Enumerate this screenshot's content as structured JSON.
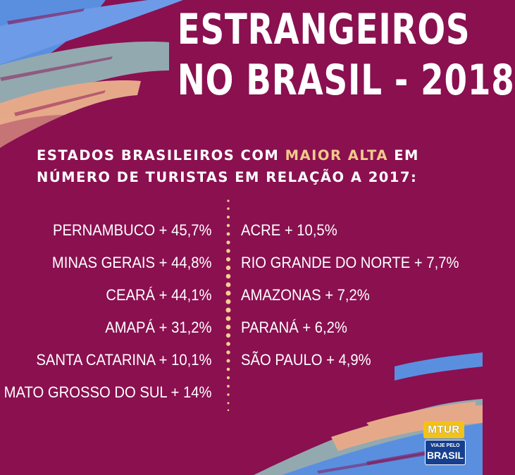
{
  "title": {
    "line1": "ESTRANGEIROS",
    "line2": "NO BRASIL - 2018"
  },
  "subtitle": {
    "part1": "ESTADOS BRASILEIROS COM ",
    "highlight": "MAIOR ALTA",
    "part2": " EM",
    "line2": "NÚMERO DE TURISTAS EM RELAÇÃO A 2017:"
  },
  "left_column": [
    "PERNAMBUCO + 45,7%",
    "MINAS GERAIS + 44,8%",
    "CEARÁ + 44,1%",
    "AMAPÁ + 31,2%",
    "SANTA CATARINA + 10,1%",
    "MATO GROSSO DO SUL + 14%"
  ],
  "right_column": [
    "ACRE + 10,5%",
    "RIO GRANDE DO NORTE + 7,7%",
    "AMAZONAS + 7,2%",
    "PARANÁ + 6,2%",
    "SÃO PAULO + 4,9%"
  ],
  "logo": {
    "tag": "MTUR",
    "small": "VIAJE PELO",
    "big": "BRASIL"
  },
  "colors": {
    "background": "#8a1050",
    "highlight": "#f4c98a",
    "stroke_blue": "#5a8fe0",
    "stroke_gray": "#93a9b0",
    "stroke_peach": "#e5a98a",
    "divider_dots": "#f6d08f"
  }
}
